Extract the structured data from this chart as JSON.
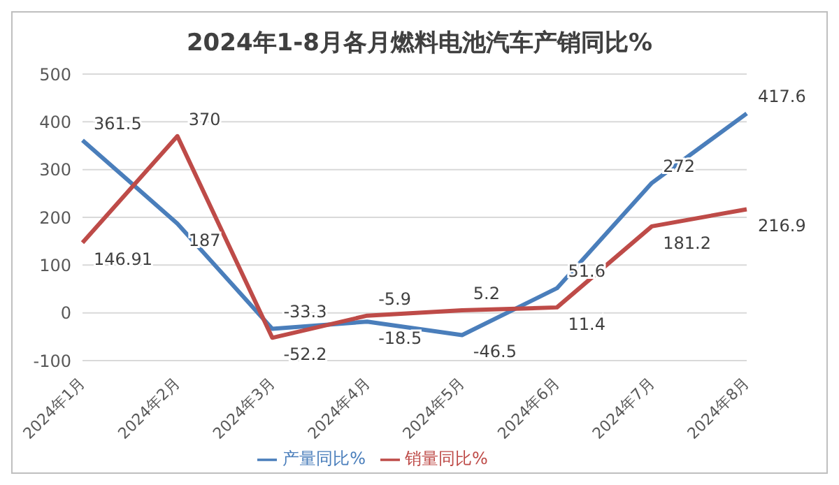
{
  "chart_data": {
    "type": "line",
    "title": "2024年1-8月各月燃料电池汽车产销同比%",
    "categories": [
      "2024年1月",
      "2024年2月",
      "2024年3月",
      "2024年4月",
      "2024年5月",
      "2024年6月",
      "2024年7月",
      "2024年8月"
    ],
    "series": [
      {
        "name": "产量同比%",
        "color": "#4a7ebb",
        "values": [
          361.5,
          187,
          -33.3,
          -18.5,
          -46.5,
          51.6,
          272,
          417.6
        ]
      },
      {
        "name": "销量同比%",
        "color": "#be4b48",
        "values": [
          146.91,
          370,
          -52.2,
          -5.9,
          5.2,
          11.4,
          181.2,
          216.9
        ]
      }
    ],
    "ylim": [
      -100,
      500
    ],
    "yticks": [
      -100,
      0,
      100,
      200,
      300,
      400,
      500
    ],
    "grid": "y",
    "legend": "bottom",
    "data_labels": true,
    "marker": "none",
    "line_style": "solid"
  }
}
